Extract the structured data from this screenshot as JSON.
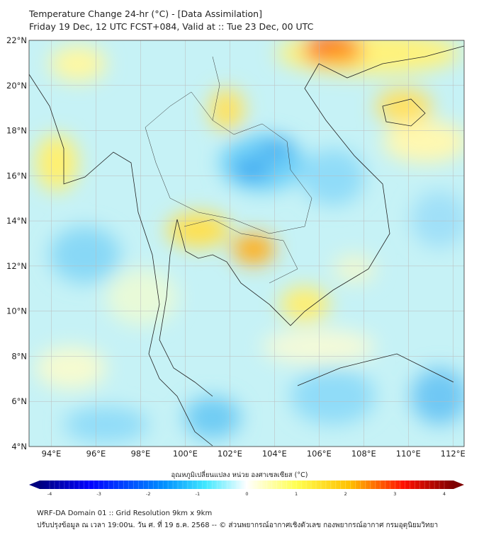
{
  "title": {
    "line1": "Temperature Change 24-hr (°C) - [Data Assimilation]",
    "line2": "Friday 19 Dec, 12 UTC FCST+084, Valid at :: Tue 23 Dec, 00 UTC"
  },
  "map": {
    "lat_ticks": [
      "22°N",
      "20°N",
      "18°N",
      "16°N",
      "14°N",
      "12°N",
      "10°N",
      "8°N",
      "6°N",
      "4°N"
    ],
    "lon_ticks": [
      "94°E",
      "96°E",
      "98°E",
      "100°E",
      "102°E",
      "104°E",
      "106°E",
      "108°E",
      "110°E",
      "112°E"
    ],
    "lat_range": [
      4,
      22
    ],
    "lon_range": [
      93,
      112.5
    ]
  },
  "colorbar": {
    "label": "อุณหภูมิเปลี่ยนแปลง หน่วย องศาเซลเซียส (°C)",
    "ticks": [
      "-4",
      "-3",
      "-2",
      "-1",
      "0",
      "1",
      "2",
      "3",
      "4"
    ],
    "range": [
      -4,
      4
    ],
    "colors": [
      "#00007f",
      "#0000ff",
      "#0080ff",
      "#40e0ff",
      "#ffffff",
      "#ffff60",
      "#ffc000",
      "#ff2000",
      "#7f0000"
    ]
  },
  "footer": {
    "line1": "WRF-DA Domain 01 :: Grid Resolution 9km x 9km",
    "line2": "ปรับปรุงข้อมูล ณ เวลา 19:00น. วัน ศ. ที่ 19 ธ.ค. 2568 -- © ส่วนพยากรณ์อากาศเชิงตัวเลข กองพยากรณ์อากาศ กรมอุตุนิยมวิทยา"
  }
}
